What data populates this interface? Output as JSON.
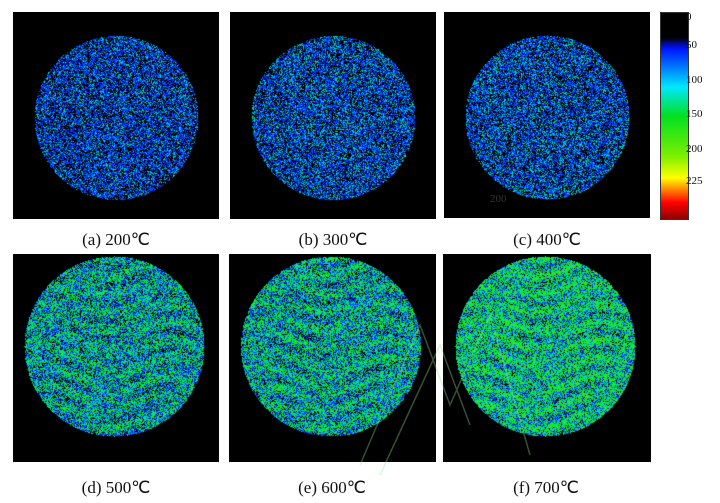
{
  "panels": [
    {
      "caption": "(a) 200℃",
      "intensity": 0.25
    },
    {
      "caption": "(b) 300℃",
      "intensity": 0.3
    },
    {
      "caption": "(c) 400℃",
      "intensity": 0.3
    },
    {
      "caption": "(d) 500℃",
      "intensity": 0.55
    },
    {
      "caption": "(e) 600℃",
      "intensity": 0.6
    },
    {
      "caption": "(f) 700℃",
      "intensity": 0.8
    }
  ],
  "colorbar": {
    "ticks": [
      "0",
      "50",
      "100",
      "150",
      "200",
      "225"
    ]
  },
  "stamp_text": "200"
}
